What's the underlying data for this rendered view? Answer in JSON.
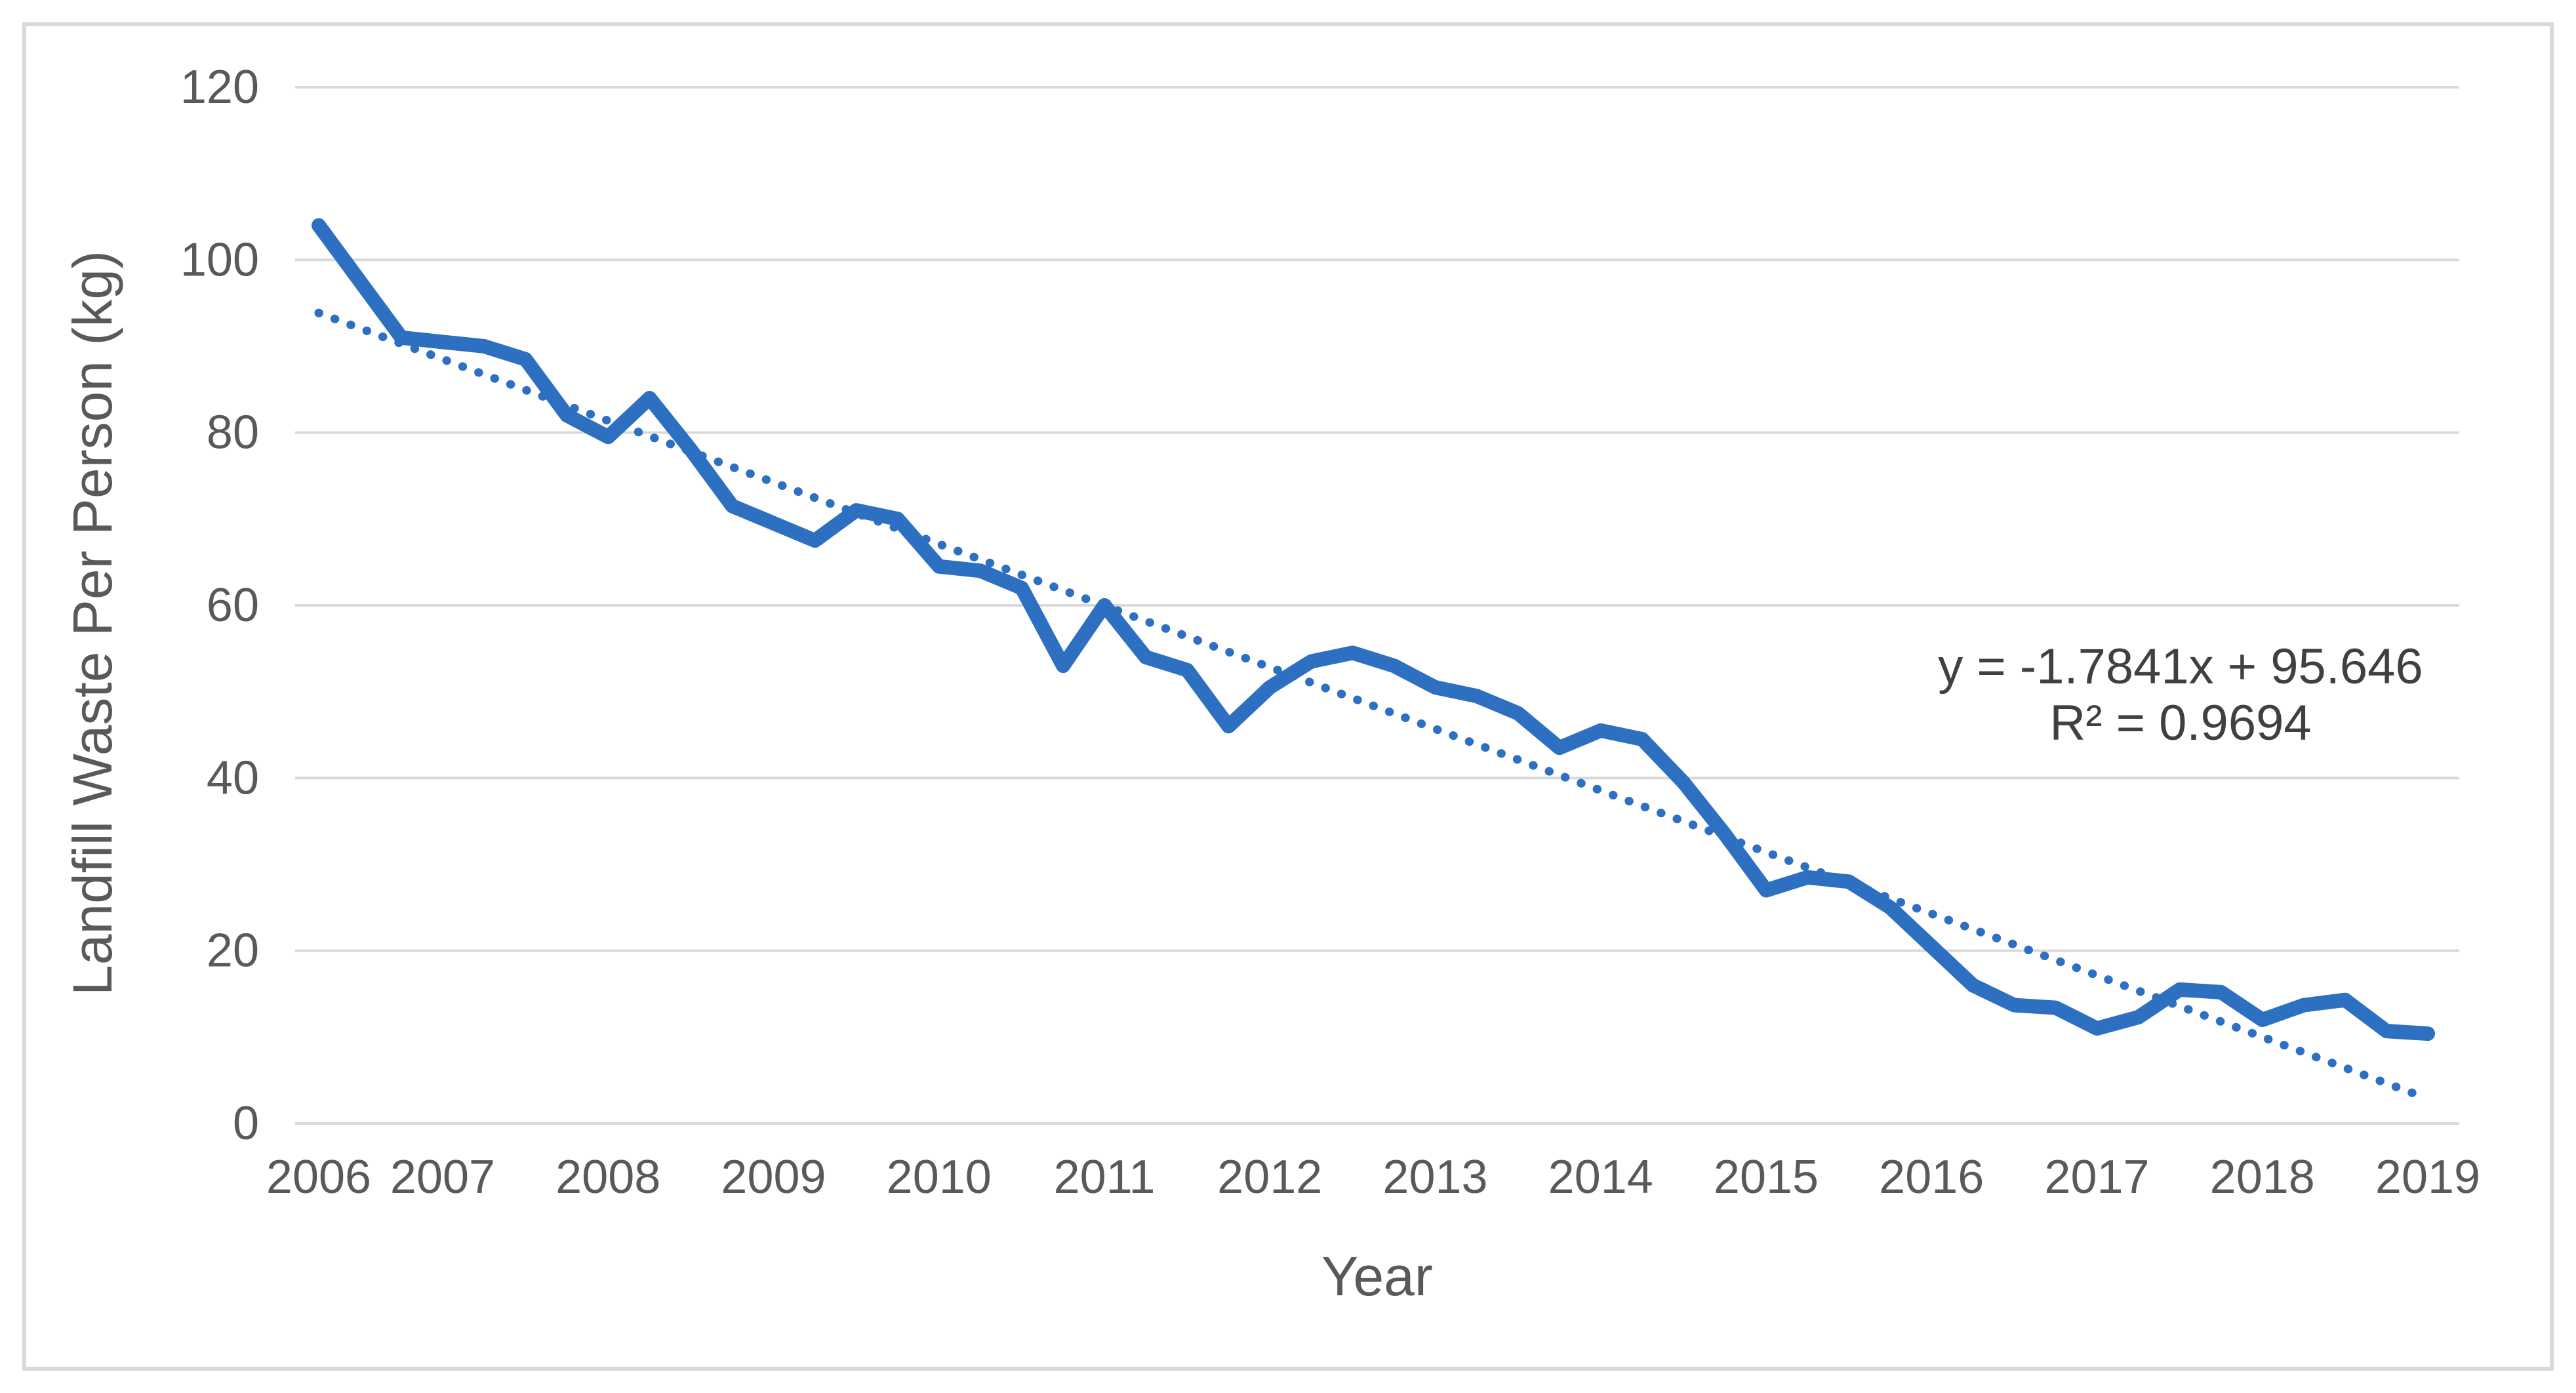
{
  "chart_data": {
    "type": "line",
    "title": "",
    "xlabel": "Year",
    "ylabel": "Landfill Waste Per Person (kg)",
    "ylim": [
      0,
      120
    ],
    "ytick_interval": 20,
    "ytick_labels": [
      "0",
      "20",
      "40",
      "60",
      "80",
      "100",
      "120"
    ],
    "xtick_labels": [
      "2006",
      "2007",
      "2008",
      "2009",
      "2010",
      "2011",
      "2012",
      "2013",
      "2014",
      "2015",
      "2016",
      "2017",
      "2018",
      "2019"
    ],
    "grid": true,
    "legend_position": "none",
    "series": [
      {
        "name": "Landfill Waste Per Person",
        "x": [
          2006.25,
          2006.5,
          2006.75,
          2007.0,
          2007.25,
          2007.5,
          2007.75,
          2008.0,
          2008.25,
          2008.5,
          2008.75,
          2009.0,
          2009.25,
          2009.5,
          2009.75,
          2010.0,
          2010.25,
          2010.5,
          2010.75,
          2011.0,
          2011.25,
          2011.5,
          2011.75,
          2012.0,
          2012.25,
          2012.5,
          2012.75,
          2013.0,
          2013.25,
          2013.5,
          2013.75,
          2014.0,
          2014.25,
          2014.5,
          2014.75,
          2015.0,
          2015.25,
          2015.5,
          2015.75,
          2016.0,
          2016.25,
          2016.5,
          2016.75,
          2017.0,
          2017.25,
          2017.5,
          2017.75,
          2018.0,
          2018.25,
          2018.5,
          2018.75,
          2019.0
        ],
        "values": [
          104,
          97.5,
          91,
          90.5,
          90,
          88.5,
          82,
          79.5,
          84,
          78,
          71.5,
          69.5,
          67.5,
          71,
          70,
          64.5,
          64,
          62,
          53,
          60,
          54,
          52.5,
          46,
          50.5,
          53.5,
          54.5,
          53,
          50.5,
          49.5,
          47.5,
          43.5,
          45.5,
          44.5,
          39.5,
          33.5,
          27,
          28.5,
          28,
          25,
          20.5,
          16,
          13.7,
          13.4,
          11,
          12.3,
          15.5,
          15.2,
          12,
          13.7,
          14.3,
          10.7,
          10.4
        ]
      }
    ],
    "trendline": {
      "style": "dotted",
      "slope": -1.7841,
      "intercept": 95.646,
      "equation_text": "y = -1.7841x + 95.646",
      "r_squared_text": "R² = 0.9694"
    },
    "colors": {
      "series": "#2d6fc1",
      "trendline": "#2d6fc1",
      "gridline": "#d9d9d9",
      "canvas_border": "#d9d9d9",
      "axis_text": "#595959",
      "equation_text": "#404040",
      "background": "#ffffff"
    }
  }
}
